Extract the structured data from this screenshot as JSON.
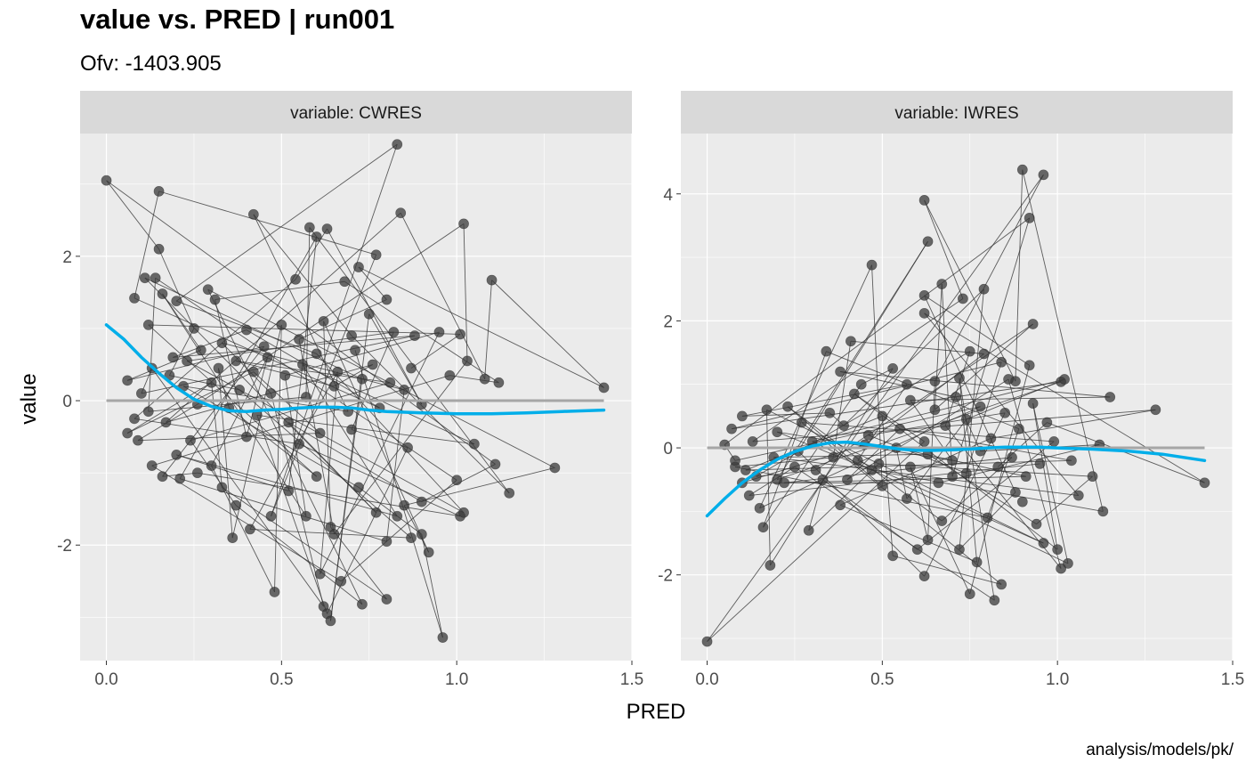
{
  "title": "value vs. PRED | run001",
  "subtitle": "Ofv: -1403.905",
  "caption": "analysis/models/pk/",
  "colors": {
    "panel_bg": "#ebebeb",
    "strip_bg": "#d9d9d9",
    "grid": "#ffffff",
    "points": "#3a3a3a",
    "smooth": "#00aee9",
    "reference": "#a6a6a6"
  },
  "chart_data": {
    "type": "scatter",
    "xlabel": "PRED",
    "ylabel": "value",
    "grid": true,
    "xlim": [
      -0.075,
      1.5
    ],
    "x_ticks": [
      "0.0",
      "0.5",
      "1.0",
      "1.5"
    ],
    "x_tick_values": [
      0,
      0.5,
      1.0,
      1.5
    ],
    "reference_line_y": 0,
    "panels": [
      {
        "strip": "variable: CWRES",
        "ylim": [
          -3.6,
          3.7
        ],
        "y_ticks": [
          "-2",
          "0",
          "2"
        ],
        "y_tick_values": [
          -2,
          0,
          2
        ],
        "points": [
          [
            0,
            3.05
          ],
          [
            0.15,
            2.9
          ],
          [
            0.83,
            3.55
          ],
          [
            0.15,
            2.1
          ],
          [
            0.42,
            2.58
          ],
          [
            0.84,
            2.6
          ],
          [
            1.02,
            2.45
          ],
          [
            0.58,
            2.4
          ],
          [
            0.63,
            2.38
          ],
          [
            0.6,
            2.27
          ],
          [
            0.77,
            2.02
          ],
          [
            0.11,
            1.7
          ],
          [
            0.14,
            1.7
          ],
          [
            1.1,
            1.67
          ],
          [
            0.29,
            1.54
          ],
          [
            0.31,
            1.4
          ],
          [
            0.16,
            1.48
          ],
          [
            0.2,
            1.38
          ],
          [
            0.08,
            1.42
          ],
          [
            0.54,
            1.68
          ],
          [
            0.68,
            1.65
          ],
          [
            0.72,
            1.85
          ],
          [
            0.8,
            1.4
          ],
          [
            0.12,
            1.05
          ],
          [
            0.25,
            1.0
          ],
          [
            0.33,
            0.8
          ],
          [
            0.4,
            0.98
          ],
          [
            0.45,
            0.75
          ],
          [
            0.5,
            1.05
          ],
          [
            0.55,
            0.85
          ],
          [
            0.62,
            1.1
          ],
          [
            0.7,
            0.9
          ],
          [
            0.75,
            1.2
          ],
          [
            0.82,
            0.95
          ],
          [
            0.88,
            0.9
          ],
          [
            0.95,
            0.95
          ],
          [
            1.01,
            0.92
          ],
          [
            1.03,
            0.55
          ],
          [
            1.08,
            0.3
          ],
          [
            1.12,
            0.25
          ],
          [
            0.06,
            0.28
          ],
          [
            0.1,
            0.1
          ],
          [
            0.13,
            0.45
          ],
          [
            0.18,
            0.35
          ],
          [
            0.22,
            0.2
          ],
          [
            0.26,
            -0.05
          ],
          [
            0.3,
            0.25
          ],
          [
            0.35,
            -0.1
          ],
          [
            0.38,
            0.15
          ],
          [
            0.43,
            -0.2
          ],
          [
            0.47,
            0.1
          ],
          [
            0.52,
            -0.3
          ],
          [
            0.57,
            0.05
          ],
          [
            0.61,
            -0.45
          ],
          [
            0.65,
            0.2
          ],
          [
            0.69,
            -0.15
          ],
          [
            0.73,
            0.3
          ],
          [
            0.78,
            -0.1
          ],
          [
            0.85,
            0.15
          ],
          [
            0.9,
            -0.05
          ],
          [
            0.98,
            0.35
          ],
          [
            0.06,
            -0.45
          ],
          [
            0.09,
            -0.55
          ],
          [
            0.13,
            -0.9
          ],
          [
            0.16,
            -1.05
          ],
          [
            0.2,
            -0.75
          ],
          [
            0.21,
            -1.08
          ],
          [
            0.26,
            -1.0
          ],
          [
            0.3,
            -0.9
          ],
          [
            0.33,
            -1.2
          ],
          [
            0.37,
            -1.45
          ],
          [
            0.36,
            -1.9
          ],
          [
            0.41,
            -1.78
          ],
          [
            0.47,
            -1.6
          ],
          [
            0.52,
            -1.25
          ],
          [
            0.57,
            -1.6
          ],
          [
            0.6,
            -1.05
          ],
          [
            0.64,
            -1.75
          ],
          [
            0.65,
            -1.85
          ],
          [
            0.72,
            -1.2
          ],
          [
            0.77,
            -1.55
          ],
          [
            0.8,
            -1.95
          ],
          [
            0.83,
            -1.6
          ],
          [
            0.87,
            -1.9
          ],
          [
            0.9,
            -1.85
          ],
          [
            0.92,
            -2.1
          ],
          [
            0.85,
            -1.45
          ],
          [
            1.0,
            -1.1
          ],
          [
            1.01,
            -1.6
          ],
          [
            1.02,
            -1.55
          ],
          [
            1.05,
            -0.6
          ],
          [
            1.11,
            -0.88
          ],
          [
            1.15,
            -1.28
          ],
          [
            1.28,
            -0.93
          ],
          [
            1.42,
            0.18
          ],
          [
            0.48,
            -2.65
          ],
          [
            0.61,
            -2.4
          ],
          [
            0.62,
            -2.85
          ],
          [
            0.63,
            -2.95
          ],
          [
            0.64,
            -3.05
          ],
          [
            0.67,
            -2.5
          ],
          [
            0.73,
            -2.82
          ],
          [
            0.8,
            -2.75
          ],
          [
            0.96,
            -3.28
          ],
          [
            0.9,
            -1.4
          ],
          [
            0.86,
            -0.65
          ],
          [
            0.7,
            -0.4
          ],
          [
            0.55,
            -0.6
          ],
          [
            0.4,
            -0.5
          ],
          [
            0.24,
            -0.55
          ],
          [
            0.17,
            -0.3
          ],
          [
            0.12,
            -0.15
          ],
          [
            0.08,
            -0.25
          ],
          [
            0.19,
            0.6
          ],
          [
            0.23,
            0.55
          ],
          [
            0.27,
            0.7
          ],
          [
            0.32,
            0.45
          ],
          [
            0.37,
            0.55
          ],
          [
            0.42,
            0.4
          ],
          [
            0.46,
            0.6
          ],
          [
            0.51,
            0.35
          ],
          [
            0.56,
            0.5
          ],
          [
            0.6,
            0.65
          ],
          [
            0.66,
            0.4
          ],
          [
            0.71,
            0.7
          ],
          [
            0.76,
            0.5
          ],
          [
            0.81,
            0.25
          ],
          [
            0.87,
            0.45
          ]
        ],
        "smooth": [
          [
            0,
            1.05
          ],
          [
            0.05,
            0.85
          ],
          [
            0.1,
            0.6
          ],
          [
            0.15,
            0.38
          ],
          [
            0.2,
            0.18
          ],
          [
            0.25,
            0.02
          ],
          [
            0.3,
            -0.08
          ],
          [
            0.35,
            -0.14
          ],
          [
            0.4,
            -0.15
          ],
          [
            0.45,
            -0.13
          ],
          [
            0.5,
            -0.12
          ],
          [
            0.55,
            -0.1
          ],
          [
            0.6,
            -0.09
          ],
          [
            0.65,
            -0.09
          ],
          [
            0.7,
            -0.1
          ],
          [
            0.75,
            -0.13
          ],
          [
            0.8,
            -0.15
          ],
          [
            0.9,
            -0.17
          ],
          [
            1.0,
            -0.18
          ],
          [
            1.1,
            -0.18
          ],
          [
            1.2,
            -0.17
          ],
          [
            1.3,
            -0.15
          ],
          [
            1.42,
            -0.13
          ]
        ]
      },
      {
        "strip": "variable: IWRES",
        "ylim": [
          -3.35,
          4.95
        ],
        "y_ticks": [
          "-2",
          "0",
          "2",
          "4"
        ],
        "y_tick_values": [
          -2,
          0,
          2,
          4
        ],
        "points": [
          [
            0,
            -3.05
          ],
          [
            0.62,
            3.9
          ],
          [
            0.9,
            4.38
          ],
          [
            0.96,
            4.3
          ],
          [
            0.92,
            3.62
          ],
          [
            0.63,
            3.25
          ],
          [
            0.47,
            2.88
          ],
          [
            0.67,
            2.58
          ],
          [
            0.62,
            2.4
          ],
          [
            0.62,
            2.12
          ],
          [
            0.73,
            2.35
          ],
          [
            0.79,
            2.5
          ],
          [
            0.93,
            1.95
          ],
          [
            0.34,
            1.52
          ],
          [
            0.75,
            1.52
          ],
          [
            0.79,
            1.48
          ],
          [
            0.84,
            1.35
          ],
          [
            0.88,
            1.05
          ],
          [
            0.92,
            1.3
          ],
          [
            0.41,
            1.68
          ],
          [
            0.53,
            1.25
          ],
          [
            0.38,
            1.2
          ],
          [
            0.44,
            1.0
          ],
          [
            0.57,
            1.0
          ],
          [
            0.65,
            1.05
          ],
          [
            0.72,
            1.1
          ],
          [
            0.86,
            1.08
          ],
          [
            1.01,
            1.04
          ],
          [
            1.02,
            1.08
          ],
          [
            1.15,
            0.8
          ],
          [
            1.28,
            0.6
          ],
          [
            0.05,
            0.05
          ],
          [
            0.08,
            -0.3
          ],
          [
            0.1,
            -0.55
          ],
          [
            0.12,
            -0.75
          ],
          [
            0.15,
            -0.95
          ],
          [
            0.16,
            -1.25
          ],
          [
            0.18,
            -1.85
          ],
          [
            0.2,
            -0.5
          ],
          [
            0.25,
            -0.3
          ],
          [
            0.29,
            -1.3
          ],
          [
            0.33,
            -0.5
          ],
          [
            0.38,
            -0.9
          ],
          [
            0.43,
            -0.2
          ],
          [
            0.47,
            -0.35
          ],
          [
            0.5,
            -0.6
          ],
          [
            0.53,
            -1.7
          ],
          [
            0.57,
            -0.8
          ],
          [
            0.6,
            -1.6
          ],
          [
            0.62,
            -2.02
          ],
          [
            0.63,
            -1.45
          ],
          [
            0.67,
            -1.15
          ],
          [
            0.7,
            -0.45
          ],
          [
            0.72,
            -1.6
          ],
          [
            0.75,
            -2.3
          ],
          [
            0.77,
            -1.8
          ],
          [
            0.8,
            -1.1
          ],
          [
            0.82,
            -2.4
          ],
          [
            0.84,
            -2.15
          ],
          [
            0.88,
            -0.7
          ],
          [
            0.9,
            -0.85
          ],
          [
            0.94,
            -1.2
          ],
          [
            0.96,
            -1.5
          ],
          [
            1.0,
            -1.6
          ],
          [
            1.01,
            -1.9
          ],
          [
            1.03,
            -1.82
          ],
          [
            1.06,
            -0.75
          ],
          [
            1.1,
            -0.45
          ],
          [
            1.12,
            0.05
          ],
          [
            1.13,
            -1.0
          ],
          [
            1.42,
            -0.55
          ],
          [
            0.07,
            0.3
          ],
          [
            0.1,
            0.5
          ],
          [
            0.13,
            0.1
          ],
          [
            0.17,
            0.6
          ],
          [
            0.2,
            0.25
          ],
          [
            0.23,
            0.65
          ],
          [
            0.27,
            0.4
          ],
          [
            0.3,
            0.1
          ],
          [
            0.35,
            0.55
          ],
          [
            0.39,
            0.35
          ],
          [
            0.42,
            0.85
          ],
          [
            0.46,
            0.2
          ],
          [
            0.5,
            0.5
          ],
          [
            0.55,
            0.3
          ],
          [
            0.58,
            0.75
          ],
          [
            0.62,
            0.1
          ],
          [
            0.65,
            0.6
          ],
          [
            0.68,
            0.35
          ],
          [
            0.71,
            0.8
          ],
          [
            0.74,
            0.45
          ],
          [
            0.78,
            0.65
          ],
          [
            0.81,
            0.15
          ],
          [
            0.85,
            0.55
          ],
          [
            0.89,
            0.3
          ],
          [
            0.93,
            0.7
          ],
          [
            0.97,
            0.4
          ],
          [
            0.99,
            0.1
          ],
          [
            1.04,
            -0.2
          ],
          [
            0.08,
            -0.2
          ],
          [
            0.11,
            -0.35
          ],
          [
            0.14,
            -0.45
          ],
          [
            0.19,
            -0.15
          ],
          [
            0.22,
            -0.55
          ],
          [
            0.26,
            -0.05
          ],
          [
            0.31,
            -0.35
          ],
          [
            0.36,
            -0.15
          ],
          [
            0.4,
            -0.5
          ],
          [
            0.45,
            0.05
          ],
          [
            0.49,
            -0.25
          ],
          [
            0.54,
            0.0
          ],
          [
            0.58,
            -0.3
          ],
          [
            0.63,
            -0.1
          ],
          [
            0.66,
            -0.55
          ],
          [
            0.7,
            -0.2
          ],
          [
            0.74,
            -0.4
          ],
          [
            0.78,
            -0.05
          ],
          [
            0.83,
            -0.3
          ],
          [
            0.87,
            -0.15
          ],
          [
            0.91,
            -0.45
          ],
          [
            0.95,
            -0.25
          ]
        ],
        "smooth": [
          [
            0,
            -1.07
          ],
          [
            0.05,
            -0.8
          ],
          [
            0.1,
            -0.55
          ],
          [
            0.15,
            -0.35
          ],
          [
            0.2,
            -0.18
          ],
          [
            0.25,
            -0.06
          ],
          [
            0.3,
            0.03
          ],
          [
            0.35,
            0.08
          ],
          [
            0.4,
            0.09
          ],
          [
            0.45,
            0.06
          ],
          [
            0.5,
            0.02
          ],
          [
            0.55,
            -0.02
          ],
          [
            0.6,
            -0.04
          ],
          [
            0.65,
            -0.04
          ],
          [
            0.7,
            -0.03
          ],
          [
            0.75,
            -0.02
          ],
          [
            0.8,
            0.0
          ],
          [
            0.85,
            0.01
          ],
          [
            0.9,
            0.01
          ],
          [
            0.95,
            0.01
          ],
          [
            1.0,
            0.0
          ],
          [
            1.1,
            -0.02
          ],
          [
            1.2,
            -0.05
          ],
          [
            1.3,
            -0.1
          ],
          [
            1.42,
            -0.2
          ]
        ]
      }
    ]
  }
}
